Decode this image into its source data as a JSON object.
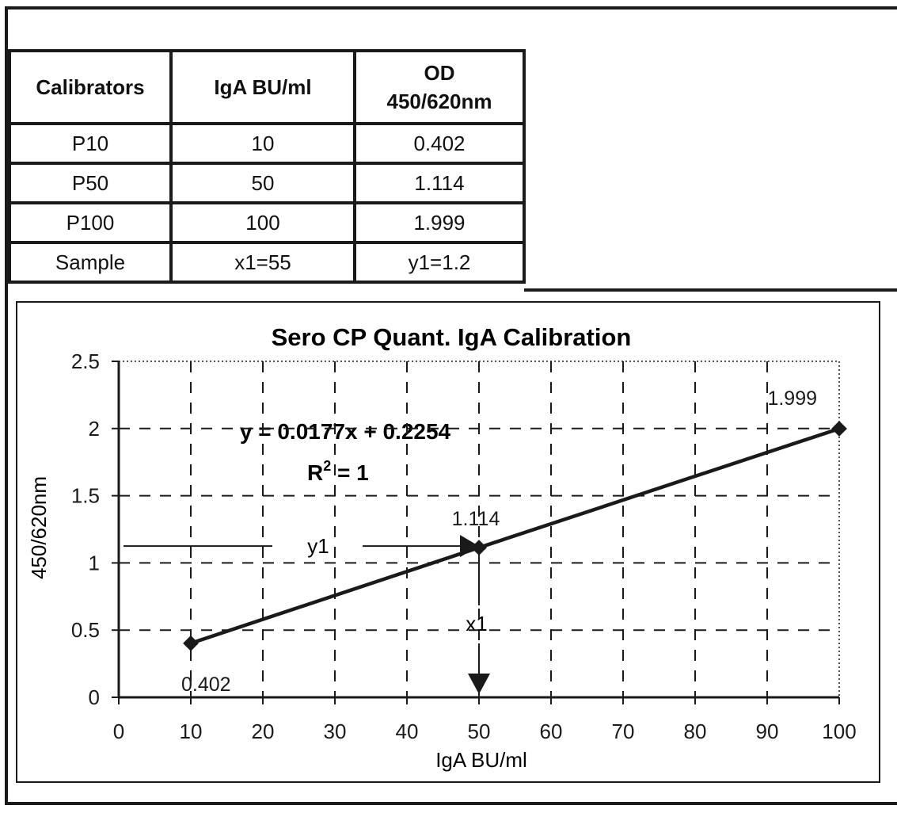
{
  "table": {
    "headers": [
      "Calibrators",
      "IgA BU/ml",
      "OD",
      "450/620nm"
    ],
    "rows": [
      [
        "P10",
        "10",
        "0.402"
      ],
      [
        "P50",
        "50",
        "1.114"
      ],
      [
        "P100",
        "100",
        "1.999"
      ],
      [
        "Sample",
        "x1=55",
        "y1=1.2"
      ]
    ]
  },
  "chart_data": {
    "type": "line",
    "title": "Sero CP Quant. IgA Calibration",
    "xlabel": "IgA BU/ml",
    "ylabel": "450/620nm",
    "xlim": [
      0,
      100
    ],
    "ylim": [
      0,
      2.5
    ],
    "x_ticks": [
      "0",
      "10",
      "20",
      "30",
      "40",
      "50",
      "60",
      "70",
      "80",
      "90",
      "100"
    ],
    "y_ticks": [
      "0",
      "0.5",
      "1",
      "1.5",
      "2",
      "2.5"
    ],
    "grid": true,
    "series": [
      {
        "x": [
          10,
          50,
          100
        ],
        "y": [
          0.402,
          1.114,
          1.999
        ]
      }
    ],
    "data_labels": [
      "0.402",
      "1.114",
      "1.999"
    ],
    "annotations": {
      "equation": "y = 0.0177x + 0.2254",
      "r2_prefix": "R",
      "r2_sup": "2",
      "r2_suffix": " = 1",
      "y_marker": "y1",
      "x_marker": "x1"
    },
    "colors": {
      "line": "#1a1a1a",
      "grid": "#1a1a1a"
    }
  }
}
